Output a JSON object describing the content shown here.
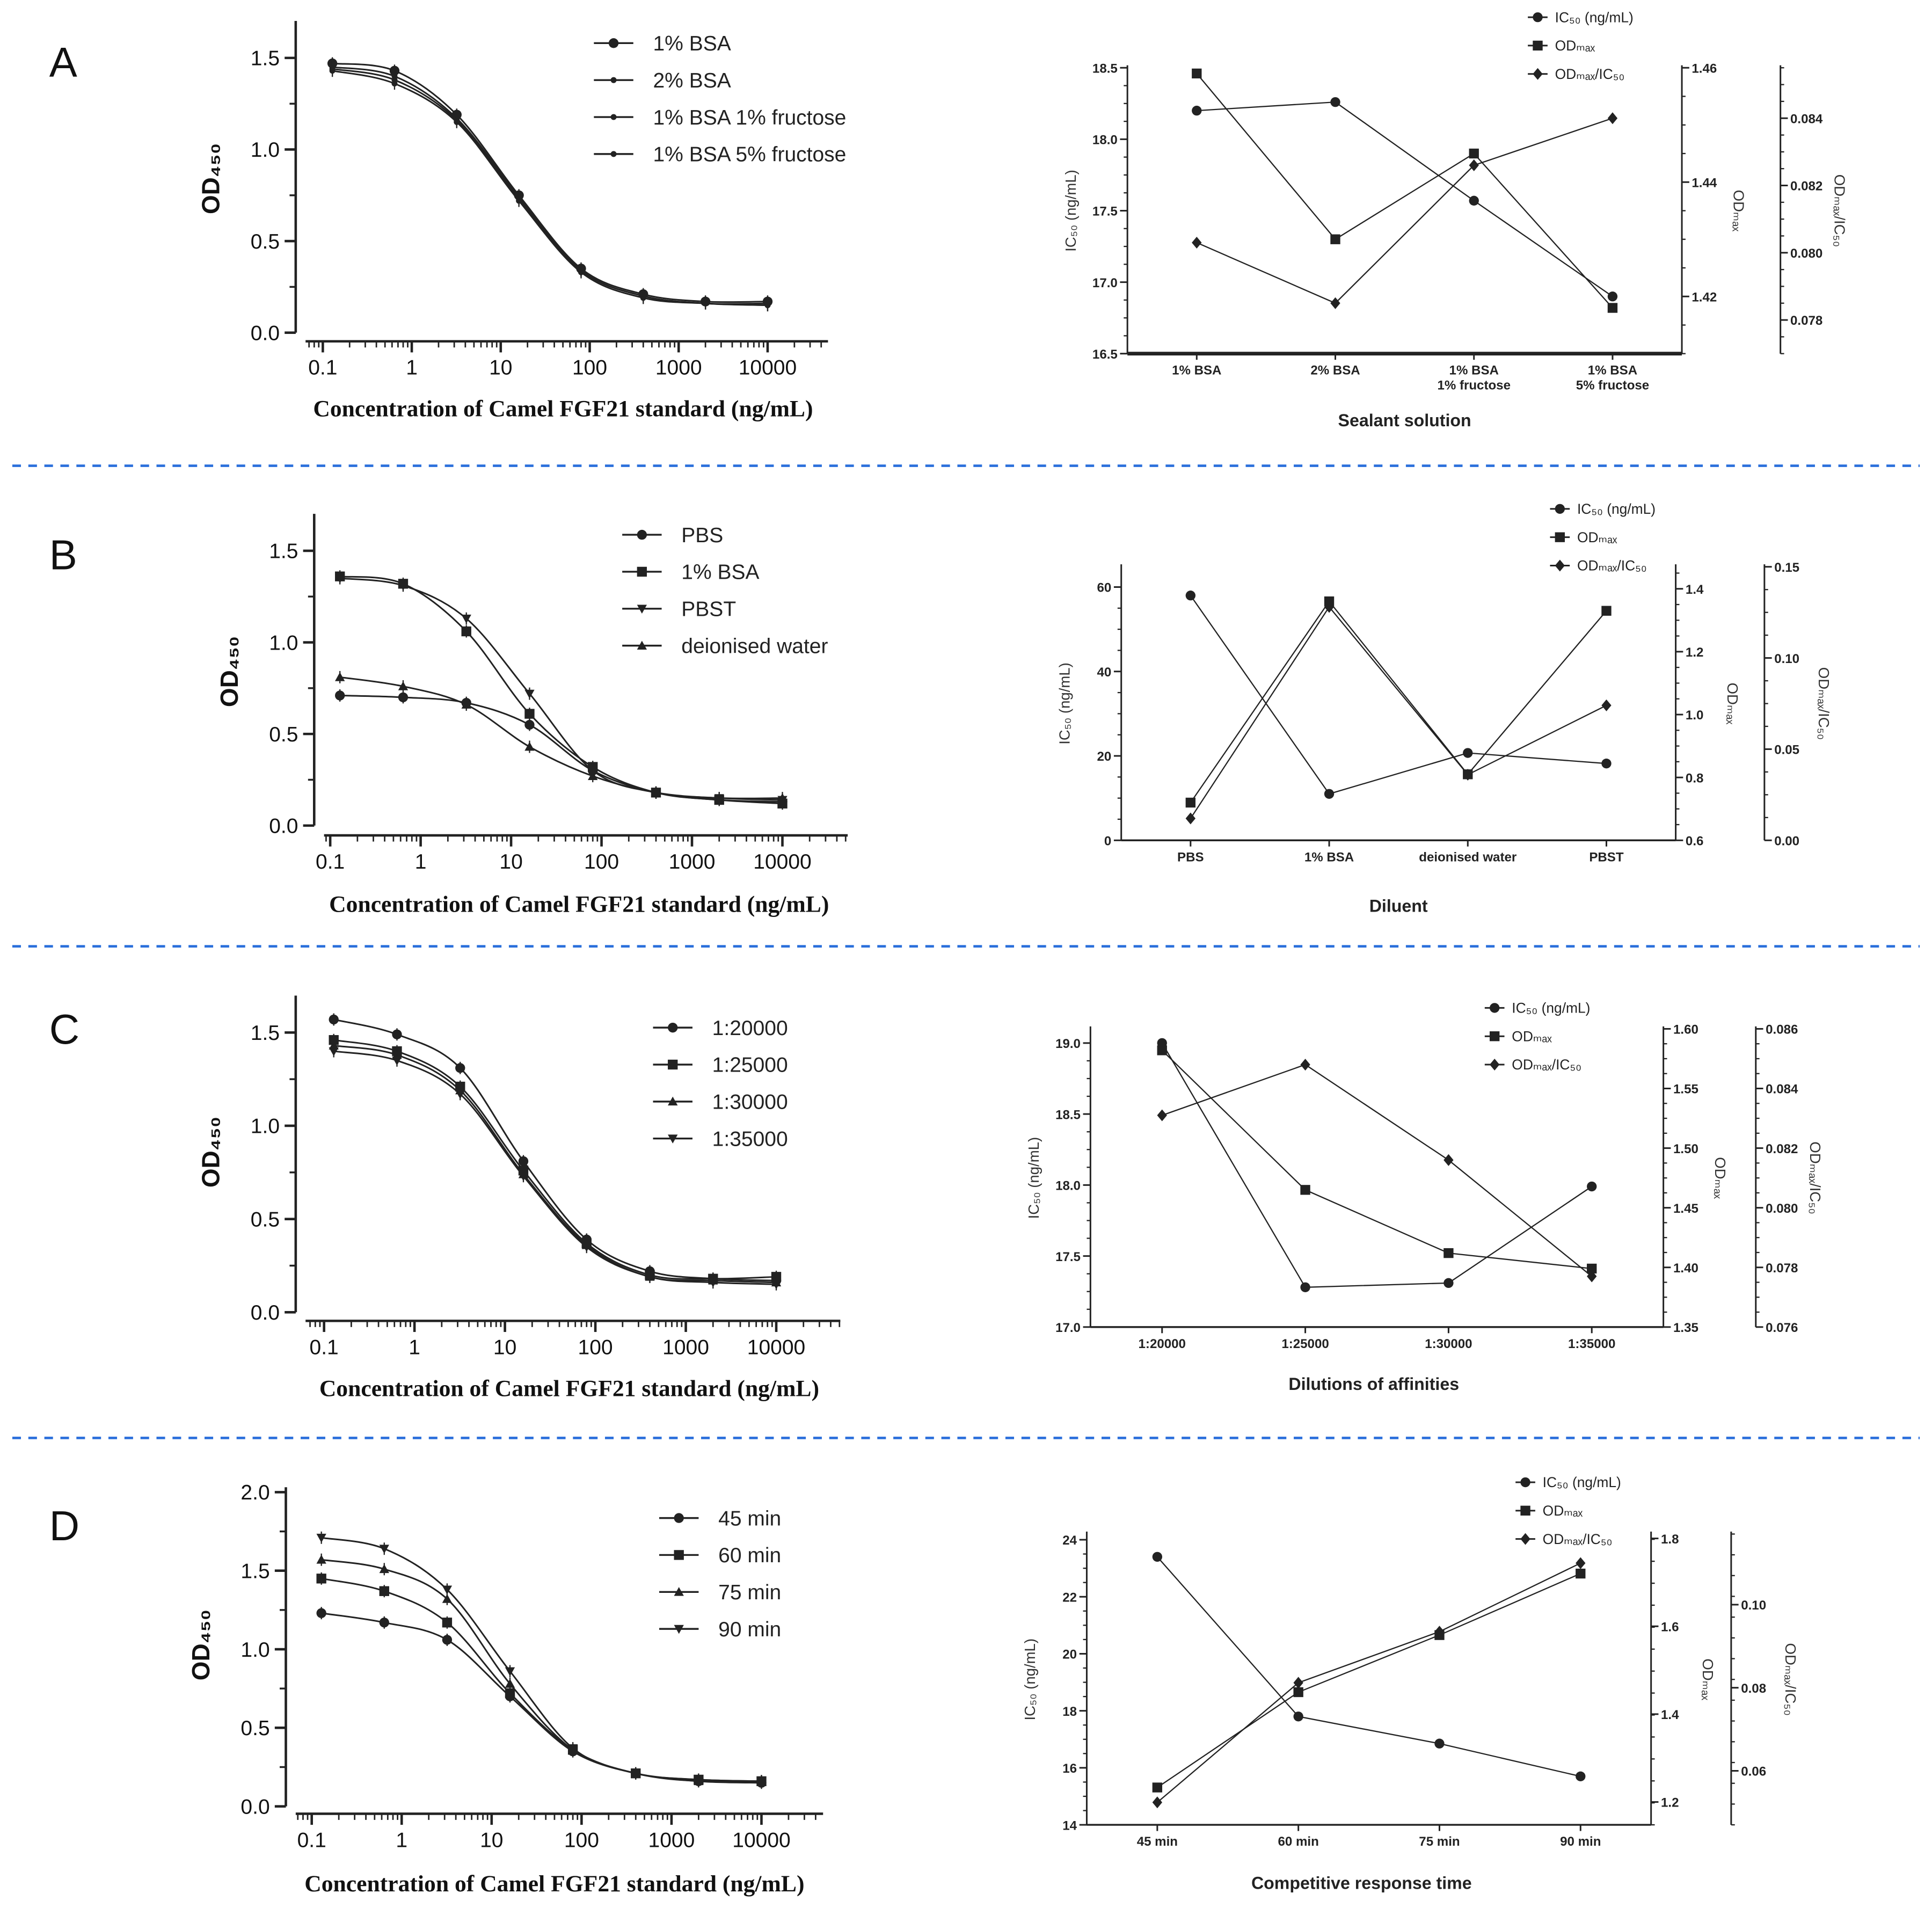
{
  "panels": [
    "A",
    "B",
    "C",
    "D"
  ],
  "colors": {
    "separator": "#2a6fdb",
    "ink": "#222222"
  },
  "chart_data": [
    {
      "type": "line",
      "panel": "A",
      "xscale": "log",
      "xlabel": "Concentration of Camel FGF21 standard (ng/mL)",
      "ylabel": "OD₄₅₀",
      "xlim": [
        0.05,
        30000
      ],
      "ylim": [
        0,
        1.5
      ],
      "xtick_values": [
        0.1,
        1,
        10,
        100,
        1000,
        10000
      ],
      "xticks": [
        "0.1",
        "1",
        "10",
        "100",
        "1000",
        "10000"
      ],
      "ytick_values": [
        0,
        0.5,
        1.0,
        1.5
      ],
      "yticks": [
        "0.0",
        "0.5",
        "1.0",
        "1.5"
      ],
      "x": [
        0.128,
        0.64,
        3.2,
        16,
        80,
        400,
        2000,
        10000
      ],
      "legend": "top-right",
      "series": [
        {
          "name": "1% BSA",
          "marker": "circle",
          "values": [
            1.47,
            1.43,
            1.19,
            0.75,
            0.35,
            0.21,
            0.17,
            0.17
          ]
        },
        {
          "name": "2% BSA",
          "marker": "dot",
          "values": [
            1.45,
            1.4,
            1.17,
            0.74,
            0.34,
            0.2,
            0.16,
            0.16
          ]
        },
        {
          "name": "1% BSA    1% fructose",
          "marker": "dot",
          "values": [
            1.44,
            1.38,
            1.16,
            0.73,
            0.34,
            0.2,
            0.16,
            0.15
          ]
        },
        {
          "name": "1%  BSA   5% fructose",
          "marker": "dot",
          "values": [
            1.43,
            1.36,
            1.15,
            0.72,
            0.33,
            0.19,
            0.16,
            0.15
          ]
        }
      ]
    },
    {
      "type": "line",
      "panel": "A",
      "xlabel": "Sealant solution",
      "ylabel": "IC₅₀ (ng/mL)",
      "y2label": "ODₘₐₓ",
      "y3label": "ODₘₐₓ/IC₅₀",
      "categories": [
        [
          "1% BSA"
        ],
        [
          "2% BSA"
        ],
        [
          "1% BSA",
          "1% fructose"
        ],
        [
          "1% BSA",
          "5% fructose"
        ]
      ],
      "axes": [
        {
          "range": [
            16.5,
            18.5
          ],
          "tick_values": [
            16.5,
            17.0,
            17.5,
            18.0,
            18.5
          ],
          "ticks": [
            "16.5",
            "17.0",
            "17.5",
            "18.0",
            "18.5"
          ]
        },
        {
          "range": [
            1.41,
            1.46
          ],
          "tick_values": [
            1.42,
            1.44,
            1.46
          ],
          "ticks": [
            "1.42",
            "1.44",
            "1.46"
          ]
        },
        {
          "range": [
            0.077,
            0.0855
          ],
          "tick_values": [
            0.078,
            0.08,
            0.082,
            0.084
          ],
          "ticks": [
            "0.078",
            "0.080",
            "0.082",
            "0.084"
          ]
        }
      ],
      "series": [
        {
          "name": "IC₅₀ (ng/mL)",
          "marker": "circle",
          "axis": 0,
          "values": [
            18.2,
            18.26,
            17.57,
            16.9
          ]
        },
        {
          "name": "ODₘₐₓ",
          "marker": "square",
          "axis": 1,
          "values": [
            1.459,
            1.43,
            1.445,
            1.418
          ]
        },
        {
          "name": "ODₘₐₓ/IC₅₀",
          "marker": "diamond",
          "axis": 2,
          "values": [
            0.0803,
            0.0785,
            0.0826,
            0.084
          ]
        }
      ]
    },
    {
      "type": "line",
      "panel": "B",
      "xscale": "log",
      "xlabel": "Concentration of Camel FGF21 standard (ng/mL)",
      "ylabel": "OD₄₅₀",
      "xlim": [
        0.05,
        30000
      ],
      "ylim": [
        0,
        1.5
      ],
      "xtick_values": [
        0.1,
        1,
        10,
        100,
        1000,
        10000
      ],
      "xticks": [
        "0.1",
        "1",
        "10",
        "100",
        "1000",
        "10000"
      ],
      "ytick_values": [
        0,
        0.5,
        1.0,
        1.5
      ],
      "yticks": [
        "0.0",
        "0.5",
        "1.0",
        "1.5"
      ],
      "x": [
        0.128,
        0.64,
        3.2,
        16,
        80,
        400,
        2000,
        10000
      ],
      "legend": "top-right",
      "series": [
        {
          "name": "PBS",
          "marker": "circle",
          "values": [
            0.71,
            0.7,
            0.67,
            0.55,
            0.3,
            0.18,
            0.14,
            0.13
          ]
        },
        {
          "name": "1% BSA",
          "marker": "square",
          "values": [
            1.36,
            1.32,
            1.06,
            0.61,
            0.32,
            0.18,
            0.14,
            0.12
          ]
        },
        {
          "name": "PBST",
          "marker": "triangle-down",
          "values": [
            1.35,
            1.31,
            1.13,
            0.72,
            0.3,
            0.18,
            0.15,
            0.14
          ]
        },
        {
          "name": "deionised water",
          "marker": "triangle-up",
          "values": [
            0.81,
            0.76,
            0.66,
            0.43,
            0.27,
            0.18,
            0.15,
            0.15
          ]
        }
      ]
    },
    {
      "type": "line",
      "panel": "B",
      "xlabel": "Diluent",
      "ylabel": "IC₅₀ (ng/mL)",
      "y2label": "ODₘₐₓ",
      "y3label": "ODₘₐₓ/IC₅₀",
      "categories": [
        [
          "PBS"
        ],
        [
          "1% BSA"
        ],
        [
          "deionised water"
        ],
        [
          "PBST"
        ]
      ],
      "axes": [
        {
          "range": [
            0,
            64.8
          ],
          "tick_values": [
            0,
            20,
            40,
            60
          ],
          "ticks": [
            "0",
            "20",
            "40",
            "60"
          ]
        },
        {
          "range": [
            0.6,
            1.47
          ],
          "tick_values": [
            0.6,
            0.8,
            1.0,
            1.2,
            1.4
          ],
          "ticks": [
            "0.6",
            "0.8",
            "1.0",
            "1.2",
            "1.4"
          ]
        },
        {
          "range": [
            0,
            0.15
          ],
          "tick_values": [
            0,
            0.05,
            0.1,
            0.15
          ],
          "ticks": [
            "0.00",
            "0.05",
            "0.10",
            "0.15"
          ]
        }
      ],
      "series": [
        {
          "name": "IC₅₀ (ng/mL)",
          "marker": "circle",
          "axis": 0,
          "values": [
            58.0,
            11.0,
            20.7,
            18.2
          ]
        },
        {
          "name": "ODₘₐₓ",
          "marker": "square",
          "axis": 1,
          "values": [
            0.72,
            1.36,
            0.81,
            1.33
          ]
        },
        {
          "name": "ODₘₐₓ/IC₅₀",
          "marker": "diamond",
          "axis": 2,
          "values": [
            0.012,
            0.128,
            0.036,
            0.074
          ]
        }
      ]
    },
    {
      "type": "line",
      "panel": "C",
      "xscale": "log",
      "xlabel": "Concentration of Camel FGF21 standard (ng/mL)",
      "ylabel": "OD₄₅₀",
      "xlim": [
        0.05,
        30000
      ],
      "ylim": [
        0,
        1.5
      ],
      "xtick_values": [
        0.1,
        1,
        10,
        100,
        1000,
        10000
      ],
      "xticks": [
        "0.1",
        "1",
        "10",
        "100",
        "1000",
        "10000"
      ],
      "ytick_values": [
        0,
        0.5,
        1.0,
        1.5
      ],
      "yticks": [
        "0.0",
        "0.5",
        "1.0",
        "1.5"
      ],
      "x": [
        0.128,
        0.64,
        3.2,
        16,
        80,
        400,
        2000,
        10000
      ],
      "legend": "top-right",
      "series": [
        {
          "name": "1:20000",
          "marker": "circle",
          "values": [
            1.57,
            1.49,
            1.31,
            0.81,
            0.39,
            0.22,
            0.18,
            0.17
          ]
        },
        {
          "name": "1:25000",
          "marker": "square",
          "values": [
            1.46,
            1.4,
            1.21,
            0.76,
            0.37,
            0.2,
            0.18,
            0.19
          ]
        },
        {
          "name": "1:30000",
          "marker": "triangle-up",
          "values": [
            1.43,
            1.38,
            1.19,
            0.74,
            0.36,
            0.19,
            0.17,
            0.16
          ]
        },
        {
          "name": "1:35000",
          "marker": "triangle-down",
          "values": [
            1.4,
            1.35,
            1.17,
            0.73,
            0.35,
            0.19,
            0.16,
            0.15
          ]
        }
      ]
    },
    {
      "type": "line",
      "panel": "C",
      "xlabel": "Dilutions of affinities",
      "ylabel": "IC₅₀ (ng/mL)",
      "y2label": "ODₘₐₓ",
      "y3label": "ODₘₐₓ/IC₅₀",
      "categories": [
        [
          "1:20000"
        ],
        [
          "1:25000"
        ],
        [
          "1:30000"
        ],
        [
          "1:35000"
        ]
      ],
      "axes": [
        {
          "range": [
            17.0,
            19.1
          ],
          "tick_values": [
            17.0,
            17.5,
            18.0,
            18.5,
            19.0
          ],
          "ticks": [
            "17.0",
            "17.5",
            "18.0",
            "18.5",
            "19.0"
          ]
        },
        {
          "range": [
            1.35,
            1.6
          ],
          "tick_values": [
            1.35,
            1.4,
            1.45,
            1.5,
            1.55,
            1.6
          ],
          "ticks": [
            "1.35",
            "1.40",
            "1.45",
            "1.50",
            "1.55",
            "1.60"
          ]
        },
        {
          "range": [
            0.076,
            0.086
          ],
          "tick_values": [
            0.076,
            0.078,
            0.08,
            0.082,
            0.084,
            0.086
          ],
          "ticks": [
            "0.076",
            "0.078",
            "0.080",
            "0.082",
            "0.084",
            "0.086"
          ]
        }
      ],
      "series": [
        {
          "name": "IC₅₀ (ng/mL)",
          "marker": "circle",
          "axis": 0,
          "values": [
            19.0,
            17.28,
            17.31,
            17.99
          ]
        },
        {
          "name": "ODₘₐₓ",
          "marker": "square",
          "axis": 1,
          "values": [
            1.582,
            1.465,
            1.412,
            1.399
          ]
        },
        {
          "name": "ODₘₐₓ/IC₅₀",
          "marker": "diamond",
          "axis": 2,
          "values": [
            0.0831,
            0.0848,
            0.0816,
            0.0777
          ]
        }
      ]
    },
    {
      "type": "line",
      "panel": "D",
      "xscale": "log",
      "xlabel": "Concentration of Camel FGF21 standard (ng/mL)",
      "ylabel": "OD₄₅₀",
      "xlim": [
        0.05,
        30000
      ],
      "ylim": [
        0,
        2.0
      ],
      "xtick_values": [
        0.1,
        1,
        10,
        100,
        1000,
        10000
      ],
      "xticks": [
        "0.1",
        "1",
        "10",
        "100",
        "1000",
        "10000"
      ],
      "ytick_values": [
        0,
        0.5,
        1.0,
        1.5,
        2.0
      ],
      "yticks": [
        "0.0",
        "0.5",
        "1.0",
        "1.5",
        "2.0"
      ],
      "x": [
        0.128,
        0.64,
        3.2,
        16,
        80,
        400,
        2000,
        10000
      ],
      "legend": "top-right",
      "series": [
        {
          "name": "45 min",
          "marker": "circle",
          "values": [
            1.23,
            1.17,
            1.06,
            0.7,
            0.35,
            0.21,
            0.16,
            0.15
          ]
        },
        {
          "name": "60 min",
          "marker": "square",
          "values": [
            1.45,
            1.37,
            1.17,
            0.72,
            0.36,
            0.21,
            0.17,
            0.16
          ]
        },
        {
          "name": "75 min",
          "marker": "triangle-up",
          "values": [
            1.57,
            1.51,
            1.32,
            0.78,
            0.36,
            0.21,
            0.16,
            0.16
          ]
        },
        {
          "name": "90 min",
          "marker": "triangle-down",
          "values": [
            1.71,
            1.64,
            1.38,
            0.86,
            0.37,
            0.21,
            0.17,
            0.16
          ]
        }
      ]
    },
    {
      "type": "line",
      "panel": "D",
      "xlabel": "Competitive response time",
      "ylabel": "IC₅₀ (ng/mL)",
      "y2label": "ODₘₐₓ",
      "y3label": "ODₘₐₓ/IC₅₀",
      "categories": [
        [
          "45 min"
        ],
        [
          "60 min"
        ],
        [
          "75 min"
        ],
        [
          "90 min"
        ]
      ],
      "axes": [
        {
          "range": [
            14,
            24.2
          ],
          "tick_values": [
            14,
            16,
            18,
            20,
            22,
            24
          ],
          "ticks": [
            "14",
            "16",
            "18",
            "20",
            "22",
            "24"
          ]
        },
        {
          "range": [
            1.148,
            1.81
          ],
          "tick_values": [
            1.2,
            1.4,
            1.6,
            1.8
          ],
          "ticks": [
            "1.2",
            "1.4",
            "1.6",
            "1.8"
          ]
        },
        {
          "range": [
            0.047,
            0.117
          ],
          "tick_values": [
            0.06,
            0.08,
            0.1
          ],
          "ticks": [
            "0.06",
            "0.08",
            "0.10"
          ]
        }
      ],
      "series": [
        {
          "name": "IC₅₀ (ng/mL)",
          "marker": "circle",
          "axis": 0,
          "values": [
            23.4,
            17.8,
            16.85,
            15.7
          ]
        },
        {
          "name": "ODₘₐₓ",
          "marker": "square",
          "axis": 1,
          "values": [
            1.233,
            1.45,
            1.58,
            1.72
          ]
        },
        {
          "name": "ODₘₐₓ/IC₅₀",
          "marker": "diamond",
          "axis": 2,
          "values": [
            0.0524,
            0.0812,
            0.0935,
            0.11
          ]
        }
      ]
    }
  ]
}
